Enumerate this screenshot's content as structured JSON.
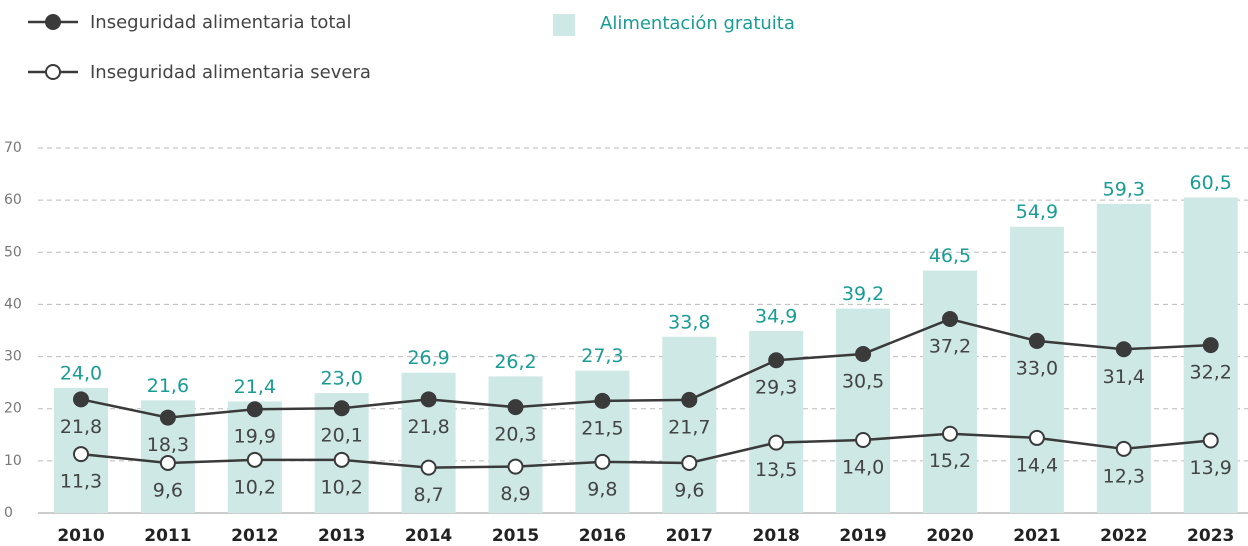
{
  "chart_data": {
    "type": "bar",
    "categories": [
      "2010",
      "2011",
      "2012",
      "2013",
      "2014",
      "2015",
      "2016",
      "2017",
      "2018",
      "2019",
      "2020",
      "2021",
      "2022",
      "2023"
    ],
    "series": [
      {
        "name": "Alimentación gratuita",
        "type": "bar",
        "color": "#cde8e5",
        "label_color": "#1a9c96",
        "values": [
          24.0,
          21.6,
          21.4,
          23.0,
          26.9,
          26.2,
          27.3,
          33.8,
          34.9,
          39.2,
          46.5,
          54.9,
          59.3,
          60.5
        ],
        "value_labels": [
          "24,0",
          "21,6",
          "21,4",
          "23,0",
          "26,9",
          "26,2",
          "27,3",
          "33,8",
          "34,9",
          "39,2",
          "46,5",
          "54,9",
          "59,3",
          "60,5"
        ]
      },
      {
        "name": "Inseguridad alimentaria total",
        "type": "line",
        "marker": "filled",
        "color": "#3a3a3a",
        "values": [
          21.8,
          18.3,
          19.9,
          20.1,
          21.8,
          20.3,
          21.5,
          21.7,
          29.3,
          30.5,
          37.2,
          33.0,
          31.4,
          32.2
        ],
        "value_labels": [
          "21,8",
          "18,3",
          "19,9",
          "20,1",
          "21,8",
          "20,3",
          "21,5",
          "21,7",
          "29,3",
          "30,5",
          "37,2",
          "33,0",
          "31,4",
          "32,2"
        ]
      },
      {
        "name": "Inseguridad alimentaria severa",
        "type": "line",
        "marker": "open",
        "color": "#3a3a3a",
        "values": [
          11.3,
          9.6,
          10.2,
          10.2,
          8.7,
          8.9,
          9.8,
          9.6,
          13.5,
          14.0,
          15.2,
          14.4,
          12.3,
          13.9
        ],
        "value_labels": [
          "11,3",
          "9,6",
          "10,2",
          "10,2",
          "8,7",
          "8,9",
          "9,8",
          "9,6",
          "13,5",
          "14,0",
          "15,2",
          "14,4",
          "12,3",
          "13,9"
        ]
      }
    ],
    "ylim": [
      0,
      70
    ],
    "yticks": [
      0,
      10,
      20,
      30,
      40,
      50,
      60,
      70
    ],
    "grid": true
  }
}
